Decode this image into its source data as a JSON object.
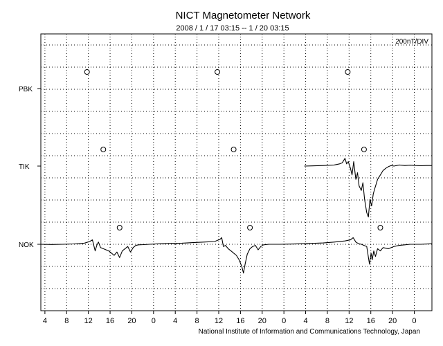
{
  "header": {
    "title": "NICT Magnetometer Network",
    "date_range": "2008 / 1 / 17   03:15 --  1 / 20   03:15"
  },
  "footer": {
    "credit": "National Institute of Information and Communications Technology, Japan"
  },
  "chart_data": {
    "type": "line",
    "title": "NICT Magnetometer Network",
    "subtitle": "2008 / 1 / 17   03:15 --  1 / 20   03:15",
    "scale_label": "200nT/DIV",
    "xlabel": "",
    "ylabel": "",
    "grid": true,
    "x_unit": "hours since 2008-01-17 03:15 UT",
    "xlim": [
      0,
      72
    ],
    "x_ticks": [
      {
        "x": 0.75,
        "label": "4"
      },
      {
        "x": 4.75,
        "label": "8"
      },
      {
        "x": 8.75,
        "label": "12"
      },
      {
        "x": 12.75,
        "label": "16"
      },
      {
        "x": 16.75,
        "label": "20"
      },
      {
        "x": 20.75,
        "label": "0"
      },
      {
        "x": 24.75,
        "label": "4"
      },
      {
        "x": 28.75,
        "label": "8"
      },
      {
        "x": 32.75,
        "label": "12"
      },
      {
        "x": 36.75,
        "label": "16"
      },
      {
        "x": 40.75,
        "label": "20"
      },
      {
        "x": 44.75,
        "label": "0"
      },
      {
        "x": 48.75,
        "label": "4"
      },
      {
        "x": 52.75,
        "label": "8"
      },
      {
        "x": 56.75,
        "label": "12"
      },
      {
        "x": 60.75,
        "label": "16"
      },
      {
        "x": 64.75,
        "label": "20"
      },
      {
        "x": 68.75,
        "label": "0"
      }
    ],
    "series": [
      {
        "name": "PBK",
        "local_noon_marks": [
          8.5,
          32.5,
          56.5
        ],
        "x": [],
        "values": []
      },
      {
        "name": "TIK",
        "local_noon_marks": [
          11.5,
          35.5,
          59.5
        ],
        "x": [
          48.5,
          50,
          52,
          54,
          55,
          55.5,
          56,
          56.3,
          56.6,
          57,
          57.3,
          57.6,
          58,
          58.3,
          58.6,
          59,
          59.3,
          59.6,
          60,
          60.3,
          60.6,
          60.9,
          61.2,
          61.5,
          62,
          62.5,
          63,
          63.5,
          64,
          64.5,
          65,
          66,
          67,
          68,
          69,
          70,
          71,
          72
        ],
        "values": [
          0,
          2,
          5,
          10,
          20,
          30,
          70,
          20,
          40,
          -20,
          -80,
          40,
          -120,
          -60,
          -180,
          -220,
          -150,
          -300,
          -420,
          -460,
          -300,
          -360,
          -250,
          -200,
          -120,
          -80,
          -40,
          -20,
          -5,
          5,
          0,
          10,
          5,
          8,
          5,
          3,
          5,
          5
        ]
      },
      {
        "name": "NOK",
        "local_noon_marks": [
          14.5,
          38.5,
          62.5
        ],
        "x": [
          0,
          2,
          4,
          6,
          8,
          9,
          9.5,
          10,
          10.3,
          10.6,
          11,
          11.5,
          12,
          12.5,
          13,
          13.5,
          14,
          14.5,
          15,
          15.5,
          16,
          16.5,
          17,
          17.5,
          18,
          19,
          20,
          22,
          24,
          26,
          28,
          30,
          32,
          33,
          33.3,
          33.6,
          34,
          34.5,
          35,
          35.5,
          36,
          36.5,
          37,
          37.3,
          37.6,
          38,
          38.5,
          39,
          39.5,
          40,
          40.5,
          41,
          42,
          44,
          46,
          48,
          50,
          52,
          54,
          56,
          57,
          57.5,
          58,
          58.5,
          59,
          60,
          60.5,
          60.8,
          61,
          61.3,
          61.6,
          62,
          62.5,
          63,
          64,
          65,
          66,
          67,
          68,
          70,
          72
        ],
        "values": [
          0,
          -2,
          0,
          3,
          10,
          25,
          40,
          -60,
          -10,
          20,
          -30,
          -40,
          -50,
          -60,
          -80,
          -100,
          -70,
          -120,
          -60,
          -40,
          -20,
          -70,
          -30,
          -10,
          -5,
          -3,
          0,
          5,
          8,
          10,
          15,
          20,
          25,
          45,
          60,
          -20,
          -10,
          -40,
          -60,
          -80,
          -100,
          -140,
          -200,
          -260,
          -180,
          -90,
          -40,
          -20,
          -10,
          -50,
          -20,
          -5,
          0,
          0,
          2,
          5,
          8,
          12,
          20,
          30,
          40,
          60,
          20,
          5,
          0,
          -20,
          -180,
          -80,
          -140,
          -60,
          -110,
          -40,
          -60,
          -30,
          -40,
          -20,
          -10,
          -5,
          0,
          0,
          5
        ]
      }
    ]
  }
}
